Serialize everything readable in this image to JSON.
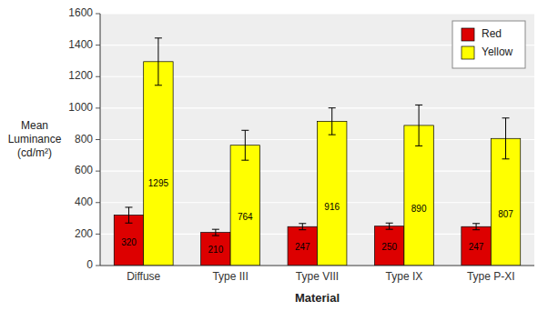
{
  "chart_data": {
    "type": "bar",
    "xlabel": "Material",
    "ylabel": "Mean\nLuminance\n(cd/m²)",
    "categories": [
      "Diffuse",
      "Type III",
      "Type VIII",
      "Type IX",
      "Type P-XI"
    ],
    "series": [
      {
        "name": "Red",
        "color": "#dd0000",
        "values": [
          320,
          210,
          247,
          250,
          247
        ],
        "errors": [
          50,
          20,
          20,
          20,
          20
        ]
      },
      {
        "name": "Yellow",
        "color": "#ffff00",
        "values": [
          1295,
          764,
          916,
          890,
          807
        ],
        "errors": [
          150,
          95,
          85,
          130,
          130
        ]
      }
    ],
    "ylim": [
      0,
      1600
    ],
    "yticks": [
      0,
      200,
      400,
      600,
      800,
      1000,
      1200,
      1400,
      1600
    ],
    "grid": true,
    "legend": "upper right",
    "data_labels": true
  }
}
